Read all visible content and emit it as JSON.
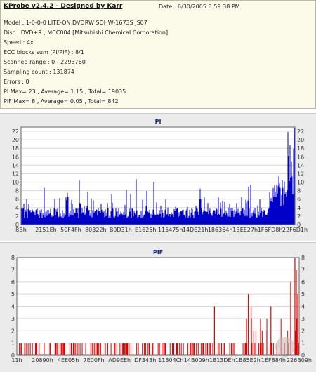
{
  "info": {
    "title": "KProbe v2.4.2 - Designed by Karr",
    "date": "Date : 6/30/2005 8:59:38 PM",
    "lines": [
      "Model : 1-0-0-0 LITE-ON DVDRW SOHW-1673S JS07",
      "Disc : DVD+R , MCC004 [Mitsubishi Chemical Corporation]",
      "Speed : 4x",
      "ECC blocks sum (PI/PIF) : 8/1",
      "Scanned range : 0 - 2293760",
      "Sampling count : 131874",
      "Errors : 0",
      "PI Max= 23 , Average= 1.15 , Total= 19035",
      "PIF Max= 8 , Average= 0.05 , Total= 842"
    ]
  },
  "colors": {
    "pi_series": "#0000c8",
    "pif_series": "#e00000",
    "plot_bg": "#ffffff",
    "panel_bg": "#ebebeb",
    "grid": "#d8d8d8"
  },
  "chart_data": [
    {
      "type": "bar",
      "title": "PI",
      "ylim": [
        0,
        23
      ],
      "yticks": [
        "0",
        "2",
        "4",
        "6",
        "8",
        "10",
        "12",
        "14",
        "16",
        "18",
        "20",
        "22"
      ],
      "xticks": [
        "8Bh",
        "2151Eh",
        "50F4Fh",
        "80322h",
        "B0D31h",
        "E1625h",
        "115475h",
        "14DE21h",
        "186364h",
        "1BEE27h",
        "1F6FD8h",
        "22F6D1h"
      ],
      "series": [
        {
          "values_summary": {
            "max": 23,
            "average": 1.15,
            "total": 19035
          }
        }
      ]
    },
    {
      "type": "bar",
      "title": "PIF",
      "ylim": [
        0,
        8
      ],
      "yticks": [
        "0",
        "1",
        "2",
        "3",
        "4",
        "5",
        "6",
        "7",
        "8"
      ],
      "xticks": [
        "11h",
        "20890h",
        "4EE05h",
        "7E00Fh",
        "AD9EEh",
        "DF343h",
        "11304Ch",
        "14B009h",
        "1813DEh",
        "1B85E2h",
        "1EF884h",
        "226B09h"
      ],
      "series": [
        {
          "values_summary": {
            "max": 8,
            "average": 0.05,
            "total": 842
          }
        }
      ]
    }
  ]
}
